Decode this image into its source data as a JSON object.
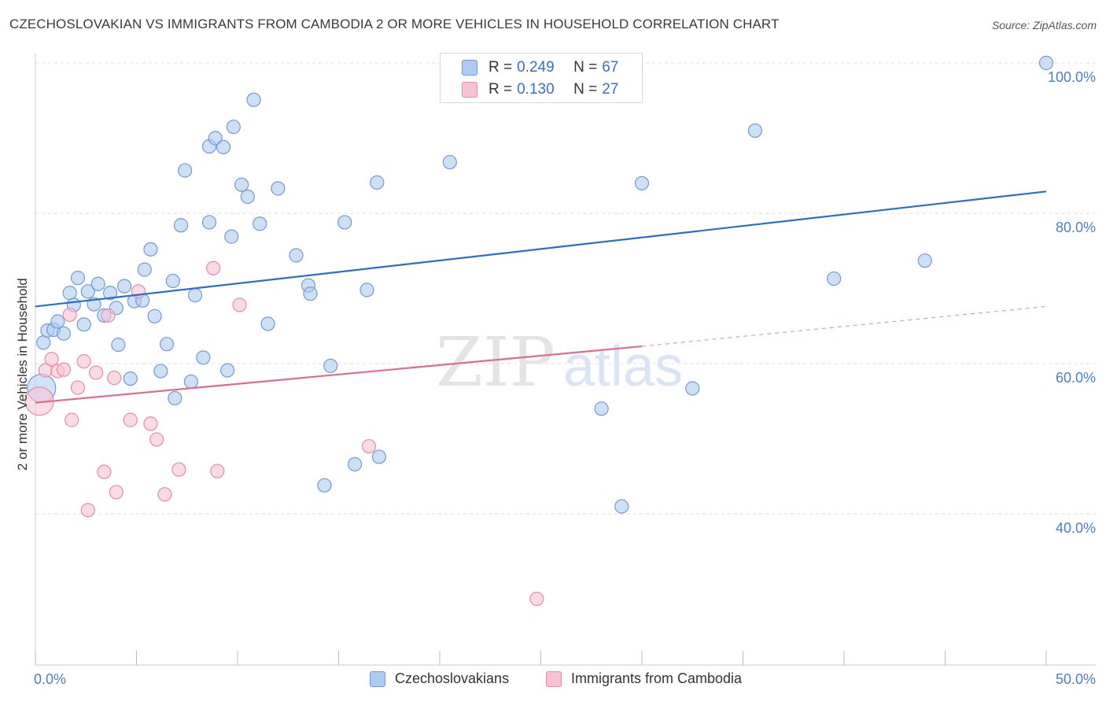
{
  "header": {
    "title": "CZECHOSLOVAKIAN VS IMMIGRANTS FROM CAMBODIA 2 OR MORE VEHICLES IN HOUSEHOLD CORRELATION CHART",
    "source": "Source: ZipAtlas.com"
  },
  "watermark": {
    "zip": "ZIP",
    "atlas": "atlas"
  },
  "legend": {
    "rows": [
      {
        "r_label": "R =",
        "r_value": "0.249",
        "n_label": "N =",
        "n_value": "67"
      },
      {
        "r_label": "R =",
        "r_value": "0.130",
        "n_label": "N =",
        "n_value": "27"
      }
    ]
  },
  "bottom_legend": {
    "series1": "Czechoslovakians",
    "series2": "Immigrants from Cambodia"
  },
  "colors": {
    "series1_fill": "#aecbf0",
    "series1_stroke": "#6f9ad8",
    "series1_line": "#2a6fcf",
    "series2_fill": "#f7c3d2",
    "series2_stroke": "#e98aa8",
    "series2_line": "#e06a92",
    "tick_text": "#4a7fc8",
    "grid": "#dddddd"
  },
  "chart_data": {
    "type": "scatter",
    "title": "CZECHOSLOVAKIAN VS IMMIGRANTS FROM CAMBODIA 2 OR MORE VEHICLES IN HOUSEHOLD CORRELATION CHART",
    "xlabel": "",
    "ylabel": "2 or more Vehicles in Household",
    "xlim": [
      0,
      50
    ],
    "ylim": [
      20,
      101
    ],
    "x_tick_labels": [
      "0.0%",
      "50.0%"
    ],
    "y_ticks": [
      40,
      60,
      80,
      100
    ],
    "y_tick_labels": [
      "40.0%",
      "60.0%",
      "80.0%",
      "100.0%"
    ],
    "grid": true,
    "legend_position": "top-center",
    "series": [
      {
        "name": "Czechoslovakians",
        "r": 0.249,
        "n": 67,
        "trend": {
          "x": [
            0,
            50
          ],
          "y": [
            67.6,
            82.9
          ]
        },
        "points": [
          {
            "x": 0.3,
            "y": 56.7,
            "big": true
          },
          {
            "x": 0.4,
            "y": 62.8
          },
          {
            "x": 0.6,
            "y": 64.4
          },
          {
            "x": 0.9,
            "y": 64.5
          },
          {
            "x": 1.1,
            "y": 65.6
          },
          {
            "x": 1.4,
            "y": 64.0
          },
          {
            "x": 1.7,
            "y": 69.4
          },
          {
            "x": 1.9,
            "y": 67.8
          },
          {
            "x": 2.1,
            "y": 71.4
          },
          {
            "x": 2.4,
            "y": 65.2
          },
          {
            "x": 2.6,
            "y": 69.6
          },
          {
            "x": 2.9,
            "y": 67.9
          },
          {
            "x": 3.1,
            "y": 70.6
          },
          {
            "x": 3.4,
            "y": 66.4
          },
          {
            "x": 3.7,
            "y": 69.4
          },
          {
            "x": 4.0,
            "y": 67.4
          },
          {
            "x": 4.1,
            "y": 62.5
          },
          {
            "x": 4.4,
            "y": 70.3
          },
          {
            "x": 4.7,
            "y": 58.0
          },
          {
            "x": 4.9,
            "y": 68.3
          },
          {
            "x": 5.3,
            "y": 68.4
          },
          {
            "x": 5.4,
            "y": 72.5
          },
          {
            "x": 5.7,
            "y": 75.2
          },
          {
            "x": 5.9,
            "y": 66.3
          },
          {
            "x": 6.2,
            "y": 59.0
          },
          {
            "x": 6.5,
            "y": 62.6
          },
          {
            "x": 6.8,
            "y": 71.0
          },
          {
            "x": 6.9,
            "y": 55.4
          },
          {
            "x": 7.2,
            "y": 78.4
          },
          {
            "x": 7.4,
            "y": 85.7
          },
          {
            "x": 7.7,
            "y": 57.6
          },
          {
            "x": 7.9,
            "y": 69.1
          },
          {
            "x": 8.3,
            "y": 60.8
          },
          {
            "x": 8.6,
            "y": 78.8
          },
          {
            "x": 8.6,
            "y": 88.9
          },
          {
            "x": 8.9,
            "y": 90.0
          },
          {
            "x": 9.3,
            "y": 88.8
          },
          {
            "x": 9.5,
            "y": 59.1
          },
          {
            "x": 9.7,
            "y": 76.9
          },
          {
            "x": 9.8,
            "y": 91.5
          },
          {
            "x": 10.2,
            "y": 83.8
          },
          {
            "x": 10.5,
            "y": 82.2
          },
          {
            "x": 10.8,
            "y": 95.1
          },
          {
            "x": 11.1,
            "y": 78.6
          },
          {
            "x": 11.5,
            "y": 65.3
          },
          {
            "x": 12.0,
            "y": 83.3
          },
          {
            "x": 12.9,
            "y": 74.4
          },
          {
            "x": 13.5,
            "y": 70.4
          },
          {
            "x": 13.6,
            "y": 69.3
          },
          {
            "x": 14.3,
            "y": 43.8
          },
          {
            "x": 14.6,
            "y": 59.7
          },
          {
            "x": 15.3,
            "y": 78.8
          },
          {
            "x": 15.8,
            "y": 46.6
          },
          {
            "x": 16.4,
            "y": 69.8
          },
          {
            "x": 16.9,
            "y": 84.1
          },
          {
            "x": 17.0,
            "y": 47.6
          },
          {
            "x": 20.5,
            "y": 86.8
          },
          {
            "x": 23.5,
            "y": 100.0
          },
          {
            "x": 25.5,
            "y": 100.0
          },
          {
            "x": 28.0,
            "y": 54.0
          },
          {
            "x": 29.0,
            "y": 41.0
          },
          {
            "x": 30.0,
            "y": 84.0
          },
          {
            "x": 32.5,
            "y": 56.7
          },
          {
            "x": 35.6,
            "y": 91.0
          },
          {
            "x": 39.5,
            "y": 71.3
          },
          {
            "x": 44.0,
            "y": 73.7
          },
          {
            "x": 50.0,
            "y": 100.0
          }
        ]
      },
      {
        "name": "Immigrants from Cambodia",
        "r": 0.13,
        "n": 27,
        "trend": {
          "x": [
            0,
            30
          ],
          "y": [
            54.8,
            62.3
          ]
        },
        "trend_dashed": {
          "x": [
            30,
            50
          ],
          "y": [
            62.3,
            67.6
          ]
        },
        "points": [
          {
            "x": 0.2,
            "y": 55.0,
            "big": true
          },
          {
            "x": 0.5,
            "y": 59.1
          },
          {
            "x": 0.8,
            "y": 60.6
          },
          {
            "x": 1.1,
            "y": 59.0
          },
          {
            "x": 1.4,
            "y": 59.2
          },
          {
            "x": 1.7,
            "y": 66.5
          },
          {
            "x": 1.8,
            "y": 52.5
          },
          {
            "x": 2.1,
            "y": 56.8
          },
          {
            "x": 2.4,
            "y": 60.3
          },
          {
            "x": 2.6,
            "y": 40.5
          },
          {
            "x": 3.0,
            "y": 58.8
          },
          {
            "x": 3.4,
            "y": 45.6
          },
          {
            "x": 3.6,
            "y": 66.4
          },
          {
            "x": 3.9,
            "y": 58.1
          },
          {
            "x": 4.0,
            "y": 42.9
          },
          {
            "x": 4.7,
            "y": 52.5
          },
          {
            "x": 5.1,
            "y": 69.6
          },
          {
            "x": 5.7,
            "y": 52.0
          },
          {
            "x": 6.0,
            "y": 49.9
          },
          {
            "x": 6.4,
            "y": 42.6
          },
          {
            "x": 7.1,
            "y": 45.9
          },
          {
            "x": 8.8,
            "y": 72.7
          },
          {
            "x": 9.0,
            "y": 45.7
          },
          {
            "x": 10.1,
            "y": 67.8
          },
          {
            "x": 16.5,
            "y": 49.0
          },
          {
            "x": 24.8,
            "y": 28.7
          },
          {
            "x": 26.7,
            "y": 100.0
          }
        ]
      }
    ]
  }
}
